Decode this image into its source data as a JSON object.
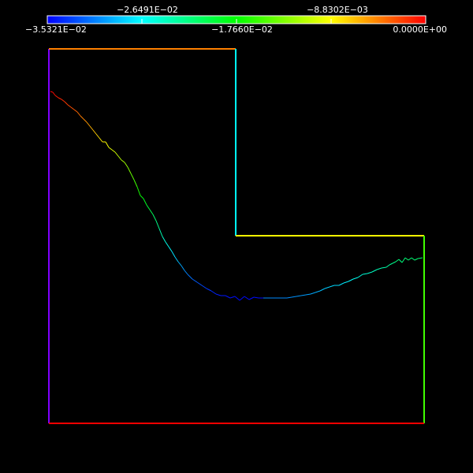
{
  "colorbar": {
    "min_value": -0.035321,
    "max_value": 0.0,
    "labels_top": [
      "−2.6491E−02",
      "−8.8302E−03"
    ],
    "labels_bottom": [
      "−3.5321E−02",
      "−1.7660E−02",
      "0.0000E+00"
    ],
    "colormap": [
      "#0000ff",
      "#00ffff",
      "#00ff00",
      "#ffff00",
      "#ff0000"
    ]
  },
  "domain_outline": {
    "segments": [
      {
        "name": "left-edge",
        "color": "#8000ff"
      },
      {
        "name": "top-edge",
        "color": "#ff8000"
      },
      {
        "name": "inner-vertical-edge",
        "color": "#00ffff"
      },
      {
        "name": "inner-horizontal-edge",
        "color": "#ffff00"
      },
      {
        "name": "right-edge",
        "color": "#40ff00"
      },
      {
        "name": "bottom-edge",
        "color": "#ff0000"
      }
    ]
  },
  "contour_curve": {
    "color_start": "#ff4000",
    "color_mid": "#0000ff",
    "color_end": "#ff4000"
  }
}
